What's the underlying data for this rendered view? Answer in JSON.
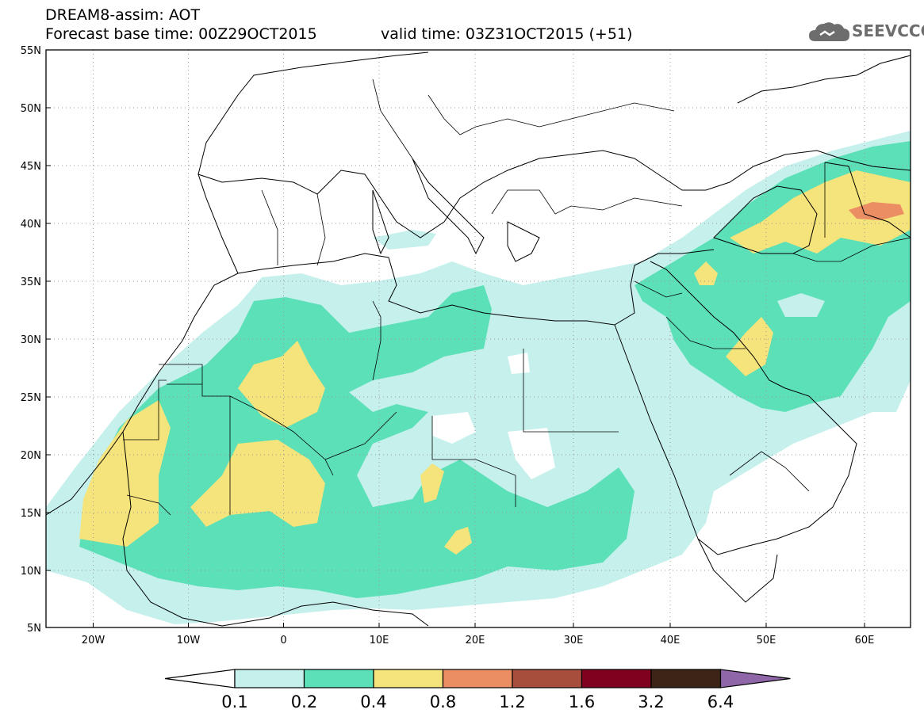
{
  "header": {
    "model": "DREAM8-assim: AOT",
    "base_time": "Forecast base time: 00Z29OCT2015",
    "valid_time": "valid time: 03Z31OCT2015 (+51)"
  },
  "logo": {
    "text": "SEEVCCC",
    "icon": "cloud-icon"
  },
  "map": {
    "lon_range": [
      -25,
      65
    ],
    "lat_range": [
      5,
      55
    ],
    "lat_ticks": [
      "5N",
      "10N",
      "15N",
      "20N",
      "25N",
      "30N",
      "35N",
      "40N",
      "45N",
      "50N",
      "55N"
    ],
    "lon_ticks": [
      "20W",
      "10W",
      "0",
      "10E",
      "20E",
      "30E",
      "40E",
      "50E",
      "60E"
    ],
    "grid": "dotted"
  },
  "legend": {
    "levels": [
      "0.1",
      "0.2",
      "0.4",
      "0.8",
      "1.2",
      "1.6",
      "3.2",
      "6.4"
    ],
    "colors": [
      "#ffffff",
      "#c6f0ec",
      "#5ce0b8",
      "#f5e37b",
      "#eb8e63",
      "#a84e3c",
      "#800020",
      "#3e2416",
      "#8f66a8"
    ]
  }
}
